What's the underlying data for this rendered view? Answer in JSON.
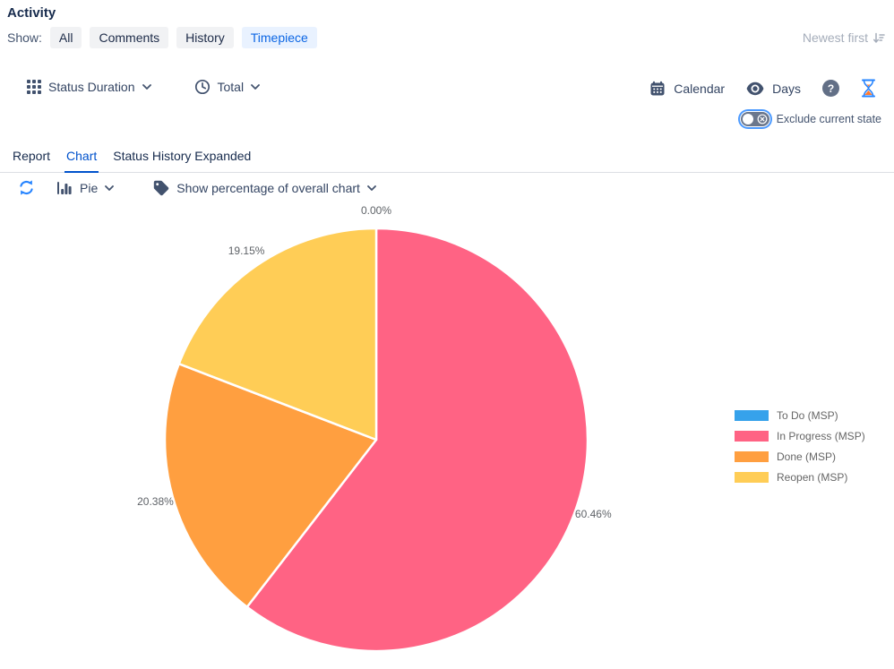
{
  "header": {
    "title": "Activity",
    "show_label": "Show:",
    "filters": [
      {
        "label": "All",
        "active": false
      },
      {
        "label": "Comments",
        "active": false
      },
      {
        "label": "History",
        "active": false
      },
      {
        "label": "Timepiece",
        "active": true
      }
    ],
    "sort_label": "Newest first"
  },
  "toolbar": {
    "status_duration_label": "Status Duration",
    "total_label": "Total",
    "calendar_label": "Calendar",
    "days_label": "Days",
    "exclude_current_state_label": "Exclude current state",
    "exclude_current_state_on": false
  },
  "tabs": [
    {
      "label": "Report",
      "active": false
    },
    {
      "label": "Chart",
      "active": true
    },
    {
      "label": "Status History Expanded",
      "active": false
    }
  ],
  "chart_controls": {
    "chart_type_label": "Pie",
    "percentage_label": "Show percentage of overall chart"
  },
  "chart_data": {
    "type": "pie",
    "labels": [
      "To Do (MSP)",
      "In Progress (MSP)",
      "Done (MSP)",
      "Reopen (MSP)"
    ],
    "values": [
      0.0,
      60.46,
      20.38,
      19.15
    ],
    "value_labels": [
      "0.00%",
      "60.46%",
      "20.38%",
      "19.15%"
    ],
    "colors": [
      "#36A2EB",
      "#FF6384",
      "#FF9F40",
      "#FFCD56"
    ],
    "slice_border_color": "#FFFFFF",
    "legend_position": "right",
    "start_angle_deg": 0,
    "direction": "clockwise"
  },
  "theme": {
    "accent_blue": "#0052CC",
    "selected_filter_bg": "#E9F2FF",
    "selected_filter_text": "#0C66E4",
    "icon_navy": "#42526E",
    "muted_text": "#A5ADBA"
  }
}
